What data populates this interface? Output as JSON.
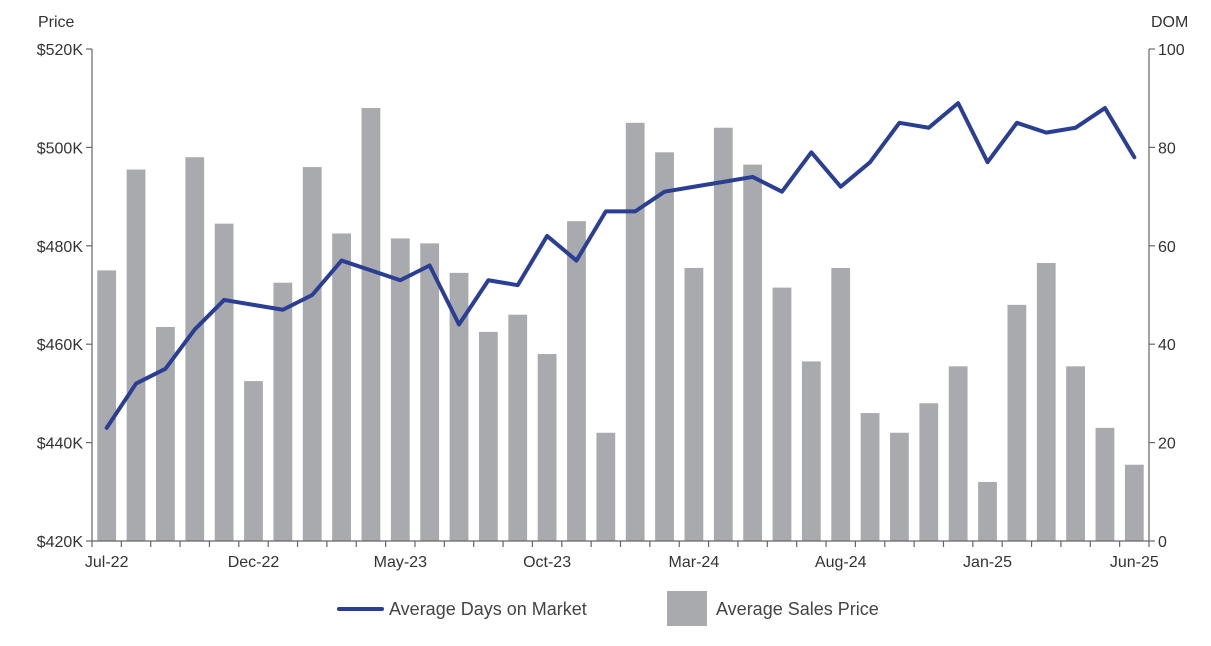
{
  "chart_data": {
    "type": "bar",
    "title": "",
    "left_axis_label": "Price",
    "right_axis_label": "DOM",
    "left_ylim": [
      420000,
      520000
    ],
    "right_ylim": [
      0,
      100
    ],
    "left_tick_labels": [
      "$420K",
      "$440K",
      "$460K",
      "$480K",
      "$500K",
      "$520K"
    ],
    "left_tick_values": [
      420000,
      440000,
      460000,
      480000,
      500000,
      520000
    ],
    "right_tick_labels": [
      "0",
      "20",
      "40",
      "60",
      "80",
      "100"
    ],
    "right_tick_values": [
      0,
      20,
      40,
      60,
      80,
      100
    ],
    "x_tick_labels": [
      "Jul-22",
      "Dec-22",
      "May-23",
      "Oct-23",
      "Mar-24",
      "Aug-24",
      "Jan-25",
      "Jun-25"
    ],
    "x_tick_indices": [
      0,
      5,
      10,
      15,
      20,
      25,
      30,
      35
    ],
    "months": [
      "Jul-22",
      "Aug-22",
      "Sep-22",
      "Oct-22",
      "Nov-22",
      "Dec-22",
      "Jan-23",
      "Feb-23",
      "Mar-23",
      "Apr-23",
      "May-23",
      "Jun-23",
      "Jul-23",
      "Aug-23",
      "Sep-23",
      "Oct-23",
      "Nov-23",
      "Dec-23",
      "Jan-24",
      "Feb-24",
      "Mar-24",
      "Apr-24",
      "May-24",
      "Jun-24",
      "Jul-24",
      "Aug-24",
      "Sep-24",
      "Oct-24",
      "Nov-24",
      "Dec-24",
      "Jan-25",
      "Feb-25",
      "Mar-25",
      "Apr-25",
      "May-25",
      "Jun-25"
    ],
    "grid": false,
    "legend_position": "bottom-center",
    "series": [
      {
        "name": "Average Sales Price",
        "type": "bar",
        "axis": "left",
        "color": "#a9aaad",
        "values": [
          475000,
          495500,
          463500,
          498000,
          484500,
          452500,
          472500,
          496000,
          482500,
          508000,
          481500,
          480500,
          474500,
          462500,
          466000,
          458000,
          485000,
          442000,
          505000,
          499000,
          475500,
          504000,
          496500,
          471500,
          456500,
          475500,
          446000,
          442000,
          448000,
          455500,
          432000,
          468000,
          476500,
          455500,
          443000,
          435500
        ]
      },
      {
        "name": "Average Days on Market",
        "type": "line",
        "axis": "right",
        "color": "#2a3f93",
        "values": [
          23,
          32,
          35,
          43,
          49,
          48,
          47,
          50,
          57,
          55,
          53,
          56,
          44,
          53,
          52,
          62,
          57,
          67,
          67,
          71,
          72,
          73,
          74,
          71,
          79,
          72,
          77,
          85,
          84,
          89,
          77,
          85,
          83,
          84,
          88,
          78
        ]
      }
    ]
  }
}
